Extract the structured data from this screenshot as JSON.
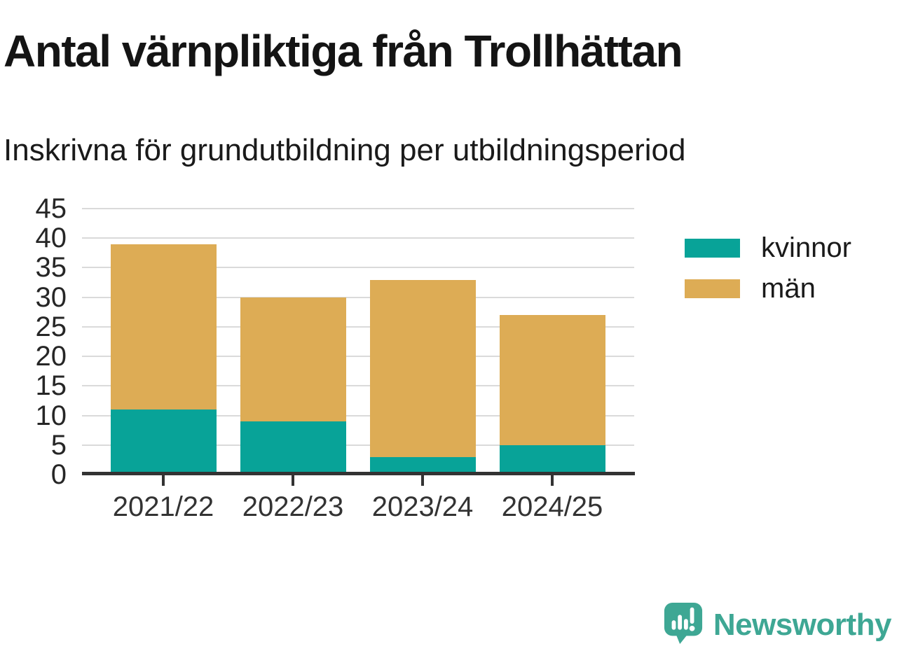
{
  "chart_data": {
    "type": "bar",
    "stacked": true,
    "title": "Antal värnpliktiga från Trollhättan",
    "subtitle": "Inskrivna för grundutbildning per utbildningsperiod",
    "categories": [
      "2021/22",
      "2022/23",
      "2023/24",
      "2024/25"
    ],
    "series": [
      {
        "name": "kvinnor",
        "color": "#08a398",
        "values": [
          11,
          9,
          3,
          5
        ]
      },
      {
        "name": "män",
        "color": "#ddac55",
        "values": [
          28,
          21,
          30,
          22
        ]
      }
    ],
    "totals": [
      39,
      30,
      33,
      27
    ],
    "xlabel": "",
    "ylabel": "",
    "ylim": [
      0,
      45
    ],
    "ytick_step": 5,
    "grid": true,
    "legend_position": "right"
  },
  "footer": {
    "brand": "Newsworthy",
    "brand_color": "#3ea794"
  }
}
